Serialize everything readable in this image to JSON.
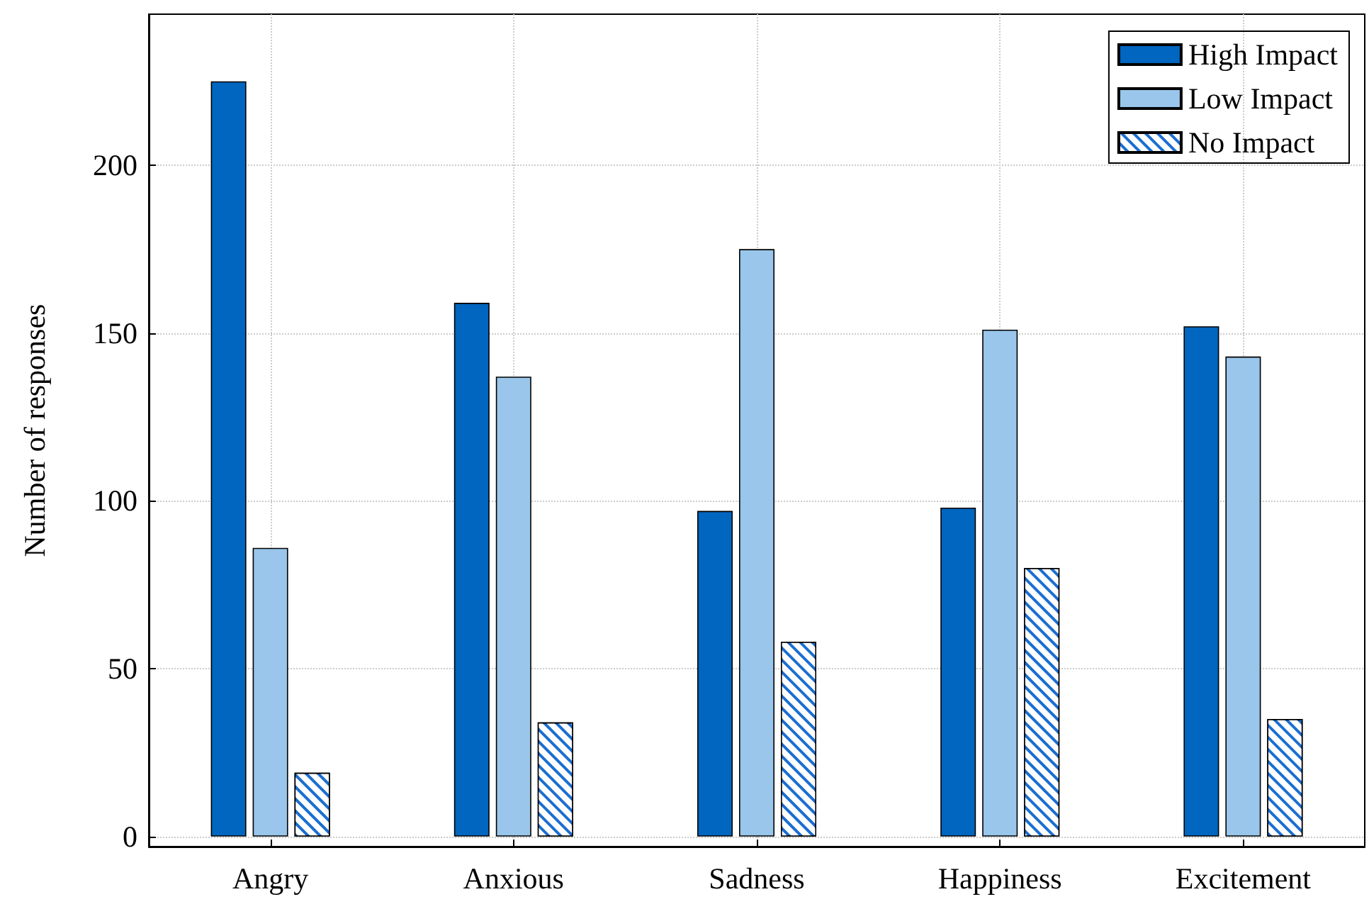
{
  "chart_data": {
    "type": "bar",
    "ylabel": "Number of responses",
    "categories": [
      "Angry",
      "Anxious",
      "Sadness",
      "Happiness",
      "Excitement"
    ],
    "series": [
      {
        "name": "High Impact",
        "color": "#0066bf",
        "values": [
          225,
          159,
          97,
          98,
          152
        ]
      },
      {
        "name": "Low Impact",
        "color": "#99c6ea",
        "values": [
          86,
          137,
          175,
          151,
          143
        ]
      },
      {
        "name": "No Impact",
        "color": "#1a6ed0",
        "values": [
          19,
          34,
          58,
          80,
          35
        ]
      }
    ],
    "ylim": [
      -3,
      245
    ],
    "yticks": [
      0,
      50,
      100,
      150,
      200
    ],
    "grid": true,
    "legend": "top right"
  }
}
